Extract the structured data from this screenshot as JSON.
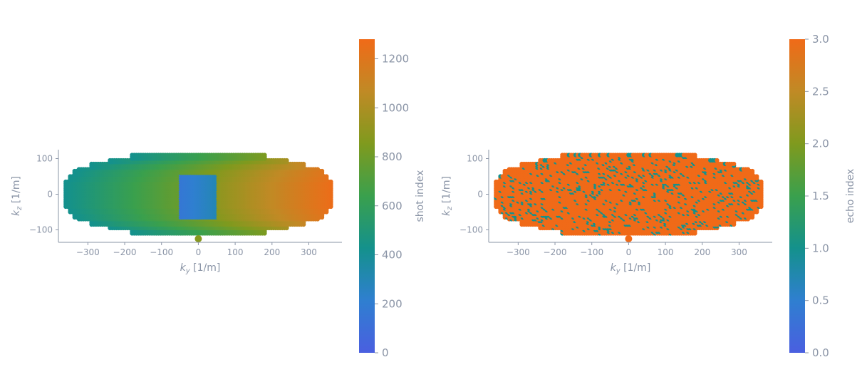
{
  "theme": {
    "axis_color": "#8a94a6",
    "text_color": "#8a94a6",
    "colormap": [
      "#4a5fe0",
      "#2f7fd0",
      "#14918c",
      "#3aa04d",
      "#7f9a1e",
      "#c08a25",
      "#f06a18"
    ]
  },
  "chart_data": [
    {
      "type": "scatter",
      "xlabel": "k_y [1/m]",
      "ylabel": "k_z [1/m]",
      "xlim": [
        -380,
        390
      ],
      "ylim": [
        -135,
        125
      ],
      "xticks": [
        -300,
        -200,
        -100,
        0,
        100,
        200,
        300
      ],
      "yticks": [
        -100,
        0,
        100
      ],
      "xtick_labels": [
        "−300",
        "−200",
        "−100",
        "0",
        "100",
        "200",
        "300"
      ],
      "ytick_labels": [
        "−100",
        "0",
        "100"
      ],
      "color_mode": "shot_index",
      "description_of_points": "elliptical k-space sampling; outer region colored by ky position from 400 (left) to 1280 (right); central square |ky|<=50, |kz|<=60 colored 160-300; single point at (0,-125)",
      "colorbar": {
        "label": "shot index",
        "range": [
          0,
          1280
        ],
        "ticks": [
          0,
          200,
          400,
          600,
          800,
          1000,
          1200
        ],
        "tick_labels": [
          "0",
          "200",
          "400",
          "600",
          "800",
          "1000",
          "1200"
        ]
      }
    },
    {
      "type": "scatter",
      "xlabel": "k_y [1/m]",
      "ylabel": "k_z [1/m]",
      "xlim": [
        -380,
        390
      ],
      "ylim": [
        -135,
        125
      ],
      "xticks": [
        -300,
        -200,
        -100,
        0,
        100,
        200,
        300
      ],
      "yticks": [
        -100,
        0,
        100
      ],
      "xtick_labels": [
        "−300",
        "−200",
        "−100",
        "0",
        "100",
        "200",
        "300"
      ],
      "ytick_labels": [
        "−100",
        "0",
        "100"
      ],
      "color_mode": "echo_index",
      "description_of_points": "same elliptical sampling; nearly all points echo index 3.0 (orange) with scattered index 1.0 (green) points",
      "colorbar": {
        "label": "echo index",
        "range": [
          0,
          3
        ],
        "ticks": [
          0,
          0.5,
          1,
          1.5,
          2,
          2.5,
          3
        ],
        "tick_labels": [
          "0.0",
          "0.5",
          "1.0",
          "1.5",
          "2.0",
          "2.5",
          "3.0"
        ]
      }
    }
  ]
}
